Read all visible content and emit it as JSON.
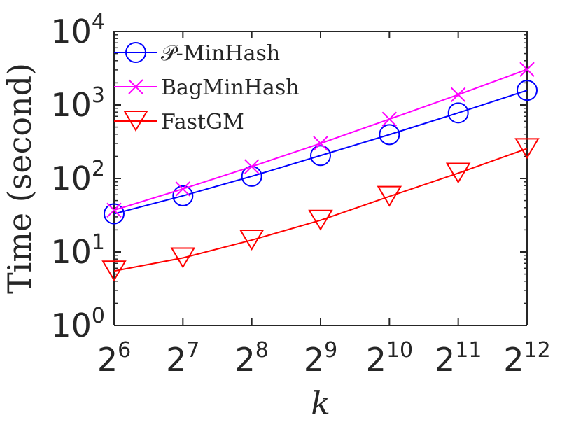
{
  "chart_data": {
    "type": "line",
    "xlabel": "k",
    "ylabel": "Time (second)",
    "x_scale": "log2",
    "y_scale": "log10",
    "x": [
      64,
      128,
      256,
      512,
      1024,
      2048,
      4096
    ],
    "xticks": [
      {
        "base": "2",
        "exp": "6"
      },
      {
        "base": "2",
        "exp": "7"
      },
      {
        "base": "2",
        "exp": "8"
      },
      {
        "base": "2",
        "exp": "9"
      },
      {
        "base": "2",
        "exp": "10"
      },
      {
        "base": "2",
        "exp": "11"
      },
      {
        "base": "2",
        "exp": "12"
      }
    ],
    "yticks": [
      {
        "base": "10",
        "exp": "0"
      },
      {
        "base": "10",
        "exp": "1"
      },
      {
        "base": "10",
        "exp": "2"
      },
      {
        "base": "10",
        "exp": "3"
      },
      {
        "base": "10",
        "exp": "4"
      }
    ],
    "ylim": [
      1,
      10000
    ],
    "grid": false,
    "legend_position": "top-left",
    "series": [
      {
        "name": "𝒫-MinHash",
        "marker": "circle",
        "color": "#0000ff",
        "values": [
          33,
          58,
          107,
          205,
          395,
          780,
          1580
        ]
      },
      {
        "name": "BagMinHash",
        "marker": "x",
        "color": "#ff00ff",
        "values": [
          37,
          72,
          145,
          300,
          640,
          1380,
          3050
        ]
      },
      {
        "name": "FastGM",
        "marker": "triangle-down",
        "color": "#ff0000",
        "values": [
          5.5,
          8.3,
          14.5,
          27,
          57,
          118,
          255
        ]
      }
    ]
  }
}
